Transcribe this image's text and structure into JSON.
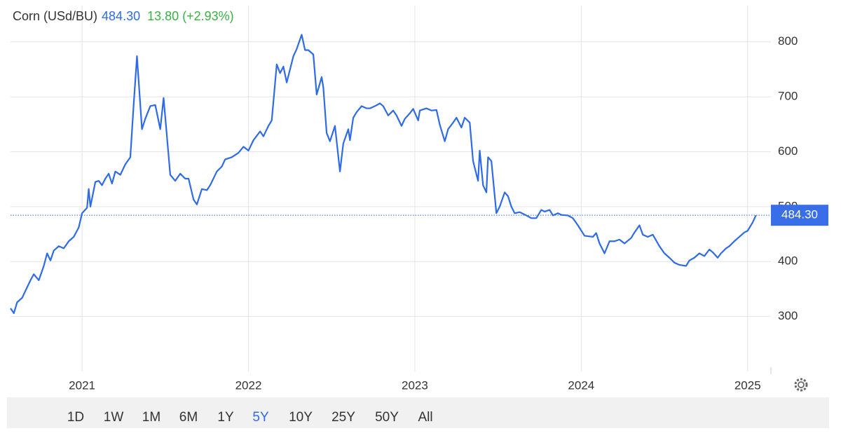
{
  "chart_data": {
    "type": "line",
    "title": "Corn (USd/BU)",
    "last_price": {
      "value": 484.3,
      "label": "484.30"
    },
    "change": "13.80 (+2.93%)",
    "xlim": [
      2020.57,
      2025.14
    ],
    "xticks": [
      2021,
      2022,
      2023,
      2024,
      2025
    ],
    "ylim": [
      200,
      866
    ],
    "yticks": [
      300,
      400,
      500,
      600,
      700,
      800
    ],
    "grid": true,
    "series": [
      {
        "name": "Corn",
        "color": "#2f6be6",
        "x": [
          2020.57,
          2020.59,
          2020.61,
          2020.64,
          2020.66,
          2020.69,
          2020.71,
          2020.74,
          2020.77,
          2020.79,
          2020.81,
          2020.83,
          2020.86,
          2020.89,
          2020.92,
          2020.95,
          2020.98,
          2021.0,
          2021.03,
          2021.04,
          2021.05,
          2021.08,
          2021.1,
          2021.12,
          2021.14,
          2021.16,
          2021.18,
          2021.2,
          2021.23,
          2021.26,
          2021.29,
          2021.31,
          2021.33,
          2021.36,
          2021.38,
          2021.41,
          2021.44,
          2021.47,
          2021.49,
          2021.53,
          2021.56,
          2021.59,
          2021.62,
          2021.64,
          2021.67,
          2021.69,
          2021.72,
          2021.75,
          2021.77,
          2021.81,
          2021.84,
          2021.86,
          2021.9,
          2021.94,
          2021.97,
          2022.0,
          2022.03,
          2022.07,
          2022.09,
          2022.12,
          2022.14,
          2022.17,
          2022.19,
          2022.21,
          2022.23,
          2022.27,
          2022.29,
          2022.32,
          2022.34,
          2022.36,
          2022.39,
          2022.41,
          2022.44,
          2022.45,
          2022.47,
          2022.49,
          2022.52,
          2022.55,
          2022.57,
          2022.6,
          2022.61,
          2022.63,
          2022.65,
          2022.68,
          2022.71,
          2022.73,
          2022.76,
          2022.79,
          2022.81,
          2022.84,
          2022.87,
          2022.89,
          2022.92,
          2022.94,
          2022.97,
          2022.99,
          2023.02,
          2023.03,
          2023.07,
          2023.1,
          2023.13,
          2023.15,
          2023.18,
          2023.2,
          2023.23,
          2023.25,
          2023.28,
          2023.3,
          2023.33,
          2023.35,
          2023.38,
          2023.39,
          2023.41,
          2023.43,
          2023.44,
          2023.46,
          2023.49,
          2023.51,
          2023.54,
          2023.56,
          2023.58,
          2023.6,
          2023.63,
          2023.67,
          2023.7,
          2023.73,
          2023.76,
          2023.78,
          2023.81,
          2023.83,
          2023.86,
          2023.88,
          2023.92,
          2023.95,
          2023.98,
          2024.02,
          2024.07,
          2024.09,
          2024.11,
          2024.14,
          2024.17,
          2024.2,
          2024.23,
          2024.26,
          2024.3,
          2024.32,
          2024.35,
          2024.37,
          2024.4,
          2024.43,
          2024.47,
          2024.5,
          2024.53,
          2024.56,
          2024.59,
          2024.63,
          2024.65,
          2024.68,
          2024.71,
          2024.74,
          2024.77,
          2024.79,
          2024.82,
          2024.84,
          2024.87,
          2024.89,
          2024.92,
          2024.95,
          2024.98,
          2025.0,
          2025.03,
          2025.05
        ],
        "values": [
          315,
          306,
          326,
          334,
          347,
          366,
          377,
          366,
          392,
          415,
          402,
          420,
          428,
          424,
          437,
          445,
          462,
          488,
          498,
          532,
          500,
          545,
          547,
          539,
          551,
          560,
          542,
          564,
          558,
          577,
          590,
          685,
          774,
          641,
          660,
          683,
          685,
          641,
          698,
          558,
          547,
          560,
          551,
          551,
          513,
          504,
          532,
          530,
          539,
          564,
          573,
          586,
          590,
          598,
          609,
          602,
          621,
          637,
          628,
          647,
          657,
          759,
          743,
          755,
          726,
          774,
          787,
          813,
          785,
          785,
          777,
          704,
          736,
          717,
          634,
          619,
          647,
          564,
          615,
          641,
          621,
          662,
          672,
          683,
          679,
          679,
          683,
          688,
          683,
          666,
          675,
          666,
          647,
          660,
          670,
          678,
          657,
          675,
          679,
          675,
          676,
          649,
          619,
          641,
          653,
          662,
          644,
          662,
          653,
          583,
          547,
          602,
          539,
          526,
          590,
          583,
          488,
          500,
          526,
          519,
          500,
          488,
          490,
          484,
          479,
          479,
          494,
          491,
          494,
          484,
          488,
          485,
          484,
          479,
          466,
          447,
          445,
          452,
          433,
          415,
          437,
          437,
          440,
          433,
          443,
          453,
          466,
          449,
          445,
          449,
          428,
          415,
          407,
          398,
          394,
          392,
          402,
          407,
          415,
          410,
          422,
          417,
          407,
          415,
          424,
          428,
          437,
          445,
          453,
          456,
          471,
          484.3
        ]
      }
    ],
    "ranges": [
      "1D",
      "1W",
      "1M",
      "6M",
      "1Y",
      "5Y",
      "10Y",
      "25Y",
      "50Y",
      "All"
    ],
    "active_range": "5Y"
  }
}
